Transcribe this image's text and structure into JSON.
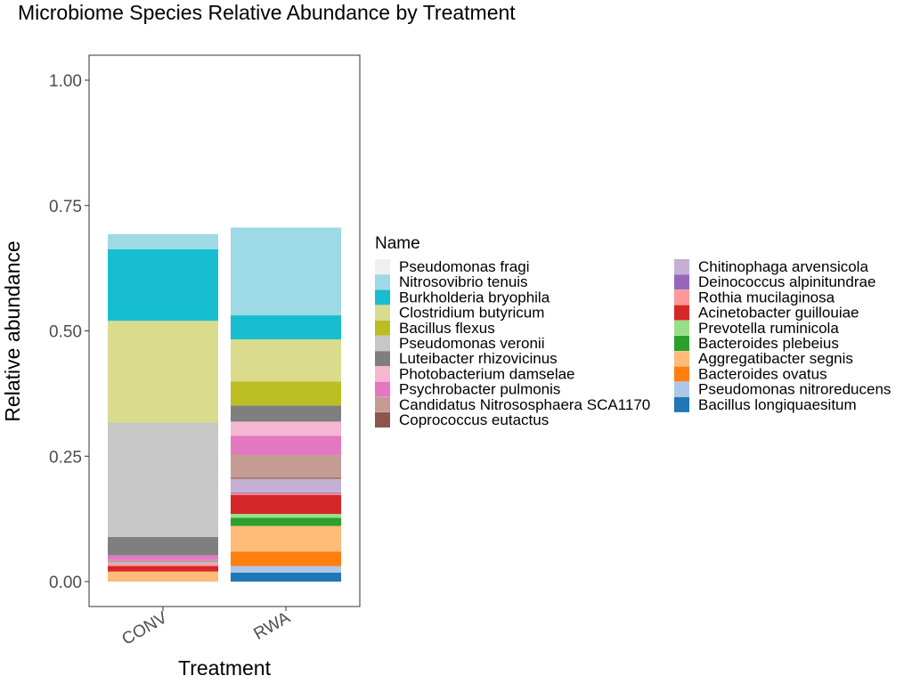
{
  "chart_data": {
    "type": "bar",
    "stacked": true,
    "title": "Microbiome Species Relative Abundance by Treatment",
    "xlabel": "Treatment",
    "ylabel": "Relative abundance",
    "categories": [
      "CONV",
      "RWA"
    ],
    "ylim": [
      -0.05,
      1.05
    ],
    "yticks": [
      0.0,
      0.25,
      0.5,
      0.75,
      1.0
    ],
    "ytick_labels": [
      "0.00",
      "0.25",
      "0.50",
      "0.75",
      "1.00"
    ],
    "grid": false,
    "legend_title": "Name",
    "legend_position": "right",
    "series": [
      {
        "name": "Pseudomonas fragi",
        "color": "#f0f0f0",
        "values": [
          0.0,
          0.0
        ]
      },
      {
        "name": "Nitrosovibrio tenuis",
        "color": "#9edae5",
        "values": [
          0.03,
          0.175
        ]
      },
      {
        "name": "Burkholderia bryophila",
        "color": "#17becf",
        "values": [
          0.143,
          0.048
        ]
      },
      {
        "name": "Clostridium butyricum",
        "color": "#dbdb8d",
        "values": [
          0.203,
          0.084
        ]
      },
      {
        "name": "Bacillus flexus",
        "color": "#bcbd22",
        "values": [
          0.0,
          0.048
        ]
      },
      {
        "name": "Pseudomonas veronii",
        "color": "#c7c7c7",
        "values": [
          0.228,
          0.0
        ]
      },
      {
        "name": "Luteibacter rhizovicinus",
        "color": "#7f7f7f",
        "values": [
          0.037,
          0.032
        ]
      },
      {
        "name": "Photobacterium damselae",
        "color": "#f7b6d2",
        "values": [
          0.0,
          0.028
        ]
      },
      {
        "name": "Psychrobacter pulmonis",
        "color": "#e377c2",
        "values": [
          0.009,
          0.038
        ]
      },
      {
        "name": "Candidatus Nitrososphaera SCA1170",
        "color": "#c49c94",
        "values": [
          0.004,
          0.046
        ]
      },
      {
        "name": "Coprococcus eutactus",
        "color": "#8c564b",
        "values": [
          0.0,
          0.002
        ]
      },
      {
        "name": "Chitinophaga arvensicola",
        "color": "#c5b0d5",
        "values": [
          0.004,
          0.027
        ]
      },
      {
        "name": "Deinococcus alpinitundrae",
        "color": "#9467bd",
        "values": [
          0.0,
          0.002
        ]
      },
      {
        "name": "Rothia mucilaginosa",
        "color": "#ff9896",
        "values": [
          0.004,
          0.003
        ]
      },
      {
        "name": "Acinetobacter guillouiae",
        "color": "#d62728",
        "values": [
          0.011,
          0.038
        ]
      },
      {
        "name": "Prevotella ruminicola",
        "color": "#98df8a",
        "values": [
          0.0,
          0.008
        ]
      },
      {
        "name": "Bacteroides plebeius",
        "color": "#2ca02c",
        "values": [
          0.0,
          0.016
        ]
      },
      {
        "name": "Aggregatibacter segnis",
        "color": "#ffbb78",
        "values": [
          0.02,
          0.051
        ]
      },
      {
        "name": "Bacteroides ovatus",
        "color": "#ff7f0e",
        "values": [
          0.0,
          0.029
        ]
      },
      {
        "name": "Pseudomonas nitroreducens",
        "color": "#aec7e8",
        "values": [
          0.0,
          0.013
        ]
      },
      {
        "name": "Bacillus longiquaesitum",
        "color": "#1f77b4",
        "values": [
          0.0,
          0.018
        ]
      }
    ]
  }
}
